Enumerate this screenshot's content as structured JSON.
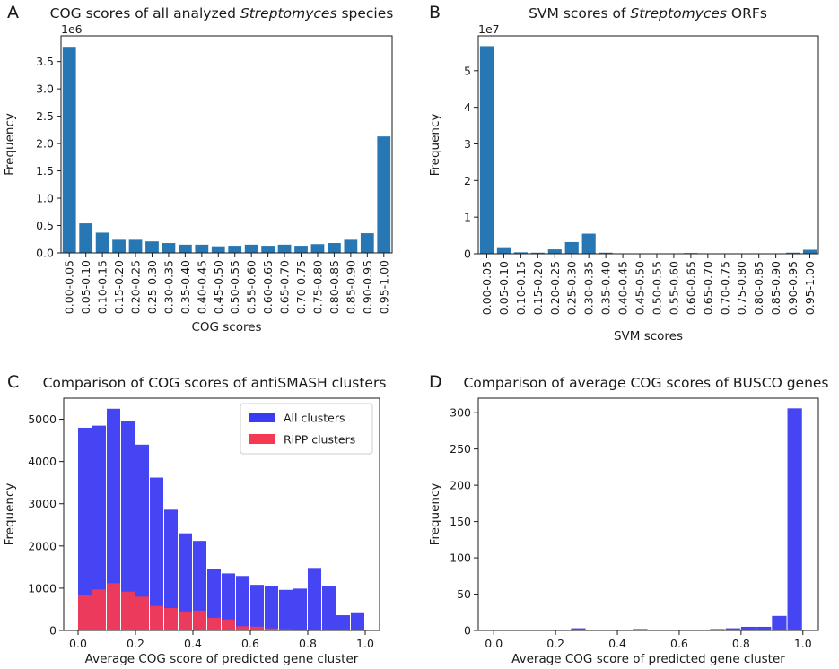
{
  "figure": {
    "panels": [
      {
        "letter": "A",
        "title_pre": "COG scores of all analyzed ",
        "title_em": "Streptomyces",
        "title_post": " species"
      },
      {
        "letter": "B",
        "title_pre": "SVM scores of ",
        "title_em": "Streptomyces",
        "title_post": " ORFs"
      },
      {
        "letter": "C",
        "title_pre": "Comparison of COG scores of antiSMASH clusters",
        "title_em": "",
        "title_post": ""
      },
      {
        "letter": "D",
        "title_pre": "Comparison of average COG scores of BUSCO genes",
        "title_em": "",
        "title_post": ""
      }
    ]
  },
  "colors": {
    "tab_blue": "#2677b4",
    "hist_blue": "#3b3bf2",
    "hist_red": "#f43a52"
  },
  "chart_data": [
    {
      "type": "bar",
      "id": "A",
      "title": "COG scores of all analyzed Streptomyces species",
      "xlabel": "COG scores",
      "ylabel": "Frequency",
      "multiplier": "1e6",
      "categories": [
        "0.00-0.05",
        "0.05-0.10",
        "0.10-0.15",
        "0.15-0.20",
        "0.20-0.25",
        "0.25-0.30",
        "0.30-0.35",
        "0.35-0.40",
        "0.40-0.45",
        "0.45-0.50",
        "0.50-0.55",
        "0.55-0.60",
        "0.60-0.65",
        "0.65-0.70",
        "0.70-0.75",
        "0.75-0.80",
        "0.80-0.85",
        "0.85-0.90",
        "0.90-0.95",
        "0.95-1.00"
      ],
      "values": [
        3.77,
        0.54,
        0.37,
        0.24,
        0.24,
        0.21,
        0.18,
        0.15,
        0.15,
        0.12,
        0.13,
        0.15,
        0.13,
        0.15,
        0.13,
        0.16,
        0.18,
        0.24,
        0.36,
        2.13
      ],
      "ylim": [
        0,
        3.97
      ],
      "yticks": [
        "0.0",
        "0.5",
        "1.0",
        "1.5",
        "2.0",
        "2.5",
        "3.0",
        "3.5"
      ],
      "grid": false
    },
    {
      "type": "bar",
      "id": "B",
      "title": "SVM scores of Streptomyces ORFs",
      "xlabel": "SVM scores",
      "ylabel": "Frequency",
      "multiplier": "1e7",
      "categories": [
        "0.00-0.05",
        "0.05-0.10",
        "0.10-0.15",
        "0.15-0.20",
        "0.20-0.25",
        "0.25-0.30",
        "0.30-0.35",
        "0.35-0.40",
        "0.40-0.45",
        "0.45-0.50",
        "0.50-0.55",
        "0.55-0.60",
        "0.60-0.65",
        "0.65-0.70",
        "0.70-0.75",
        "0.75-0.80",
        "0.80-0.85",
        "0.85-0.90",
        "0.90-0.95",
        "0.95-1.00"
      ],
      "values": [
        5.67,
        0.18,
        0.04,
        0.03,
        0.12,
        0.32,
        0.55,
        0.03,
        0.01,
        0.01,
        0.01,
        0.01,
        0.02,
        0.01,
        0.01,
        0.01,
        0.01,
        0.01,
        0.03,
        0.11
      ],
      "ylim": [
        0,
        5.95
      ],
      "yticks": [
        "0",
        "1",
        "2",
        "3",
        "4",
        "5"
      ],
      "grid": false
    },
    {
      "type": "bar",
      "id": "C",
      "title": "Comparison of COG scores of antiSMASH clusters",
      "xlabel": "Average COG score of predicted gene cluster",
      "ylabel": "Frequency",
      "bin_left": [
        0.0,
        0.05,
        0.1,
        0.15,
        0.2,
        0.25,
        0.3,
        0.35,
        0.4,
        0.45,
        0.5,
        0.55,
        0.6,
        0.65,
        0.7,
        0.75,
        0.8,
        0.85,
        0.9,
        0.95
      ],
      "bin_width": 0.05,
      "series": [
        {
          "name": "All clusters",
          "color": "#3b3bf2",
          "values": [
            4800,
            4850,
            5250,
            4950,
            4400,
            3620,
            2860,
            2300,
            2120,
            1460,
            1350,
            1290,
            1080,
            1060,
            960,
            990,
            1480,
            1060,
            360,
            430
          ]
        },
        {
          "name": "RiPP clusters",
          "color": "#f43a52",
          "values": [
            830,
            970,
            1120,
            920,
            800,
            580,
            530,
            450,
            470,
            300,
            260,
            100,
            90,
            50,
            30,
            20,
            10,
            5,
            0,
            0
          ]
        }
      ],
      "xlim": [
        -0.05,
        1.05
      ],
      "ylim": [
        0,
        5500
      ],
      "xticks": [
        "0.0",
        "0.2",
        "0.4",
        "0.6",
        "0.8",
        "1.0"
      ],
      "yticks": [
        "0",
        "1000",
        "2000",
        "3000",
        "4000",
        "5000"
      ],
      "legend": "top-right",
      "grid": false
    },
    {
      "type": "bar",
      "id": "D",
      "title": "Comparison of average COG scores of BUSCO genes",
      "xlabel": "Average COG score of predicted gene cluster",
      "ylabel": "Frequency",
      "bin_left": [
        0.0,
        0.05,
        0.1,
        0.15,
        0.2,
        0.25,
        0.3,
        0.35,
        0.4,
        0.45,
        0.5,
        0.55,
        0.6,
        0.65,
        0.7,
        0.75,
        0.8,
        0.85,
        0.9,
        0.95
      ],
      "bin_width": 0.05,
      "values": [
        1,
        1,
        1,
        0,
        1,
        3,
        0,
        1,
        1,
        2,
        0,
        1,
        1,
        1,
        2,
        3,
        5,
        5,
        20,
        306
      ],
      "color": "#3b3bf2",
      "xlim": [
        -0.05,
        1.05
      ],
      "ylim": [
        0,
        320
      ],
      "xticks": [
        "0.0",
        "0.2",
        "0.4",
        "0.6",
        "0.8",
        "1.0"
      ],
      "yticks": [
        "0",
        "50",
        "100",
        "150",
        "200",
        "250",
        "300"
      ],
      "grid": false
    }
  ]
}
